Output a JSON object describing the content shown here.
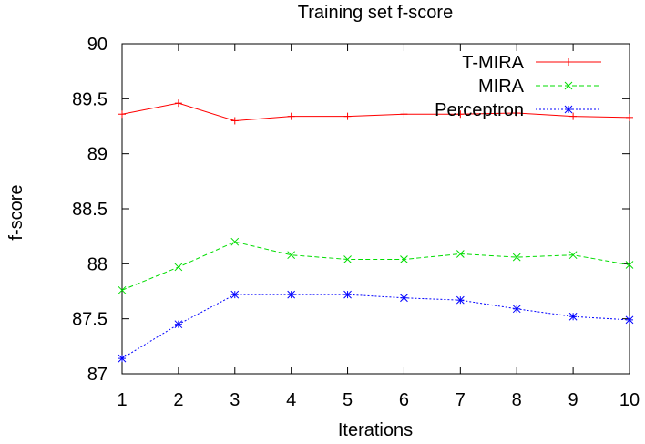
{
  "chart_data": {
    "type": "line",
    "title": "Training set f-score",
    "xlabel": "Iterations",
    "ylabel": "f-score",
    "x": [
      1,
      2,
      3,
      4,
      5,
      6,
      7,
      8,
      9,
      10
    ],
    "xlim": [
      1,
      10
    ],
    "ylim": [
      87,
      90
    ],
    "xticks": [
      "1",
      "2",
      "3",
      "4",
      "5",
      "6",
      "7",
      "8",
      "9",
      "10"
    ],
    "yticks": [
      "87",
      "87.5",
      "88",
      "88.5",
      "89",
      "89.5",
      "90"
    ],
    "grid": false,
    "legend_position": "top-right",
    "series": [
      {
        "name": "T-MIRA",
        "color": "#ff0000",
        "dash": "solid",
        "marker": "plus",
        "values": [
          89.36,
          89.46,
          89.3,
          89.34,
          89.34,
          89.36,
          89.36,
          89.37,
          89.34,
          89.33
        ]
      },
      {
        "name": "MIRA",
        "color": "#00dd00",
        "dash": "dashed",
        "marker": "cross",
        "values": [
          87.76,
          87.97,
          88.2,
          88.08,
          88.04,
          88.04,
          88.09,
          88.06,
          88.08,
          87.99
        ]
      },
      {
        "name": "Perceptron",
        "color": "#0000ff",
        "dash": "dotted",
        "marker": "star",
        "values": [
          87.14,
          87.45,
          87.72,
          87.72,
          87.72,
          87.69,
          87.67,
          87.59,
          87.52,
          87.49
        ]
      }
    ]
  }
}
